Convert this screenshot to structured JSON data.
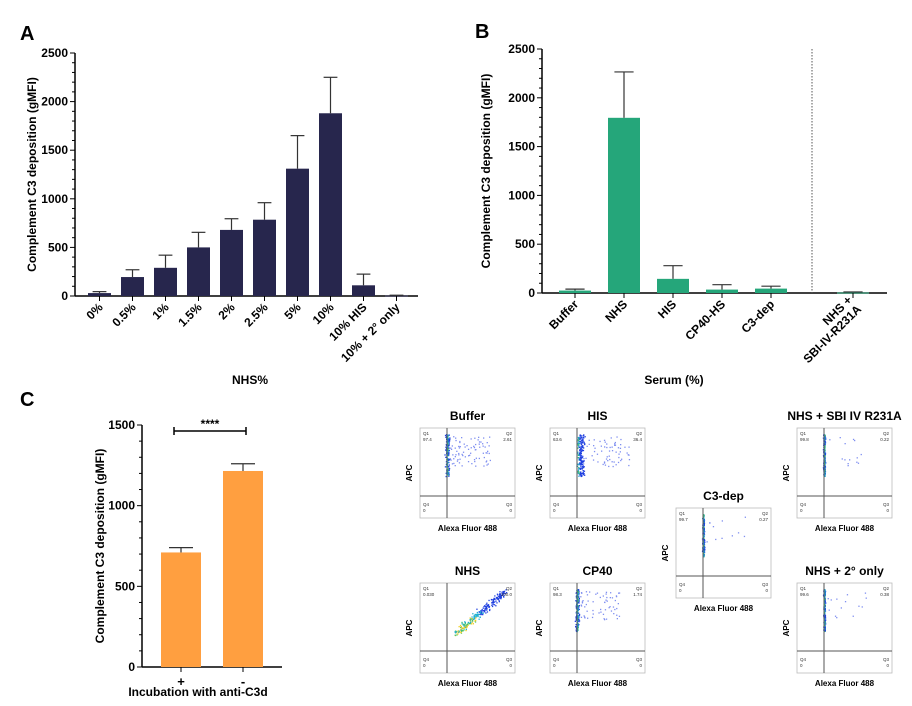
{
  "panels": {
    "A": "A",
    "B": "B",
    "C": "C"
  },
  "chart_data": [
    {
      "id": "A",
      "type": "bar",
      "title": "",
      "xlabel": "NHS%",
      "ylabel": "Complement C3 deposition (gMFI)",
      "ylim": [
        0,
        2500
      ],
      "yticks": [
        0,
        500,
        1000,
        1500,
        2000,
        2500
      ],
      "grid": false,
      "color": "#27264d",
      "categories": [
        "0%",
        "0.5%",
        "1%",
        "1.5%",
        "2%",
        "2.5%",
        "5%",
        "10%",
        "10% HIS",
        "10% + 2° only"
      ],
      "values": [
        30,
        195,
        290,
        500,
        680,
        785,
        1310,
        1880,
        110,
        5
      ],
      "errors": [
        15,
        75,
        130,
        155,
        115,
        175,
        340,
        370,
        115,
        3
      ]
    },
    {
      "id": "B",
      "type": "bar",
      "title": "",
      "xlabel": "Serum (%)",
      "ylabel": "Complement C3 deposition (gMFI)",
      "ylim": [
        0,
        2500
      ],
      "yticks": [
        0,
        500,
        1000,
        1500,
        2000,
        2500
      ],
      "grid": false,
      "color": "#25a67a",
      "categories": [
        "Buffer",
        "NHS",
        "HIS",
        "CP40-HS",
        "C3-dep",
        "NHS + SBI-IV-R231A"
      ],
      "category_lines": [
        [
          "Buffer"
        ],
        [
          "NHS"
        ],
        [
          "HIS"
        ],
        [
          "CP40-HS"
        ],
        [
          "C3-dep"
        ],
        [
          "NHS +",
          "SBI-IV-R231A"
        ]
      ],
      "values": [
        25,
        1795,
        145,
        35,
        45,
        5
      ],
      "errors": [
        15,
        470,
        135,
        50,
        25,
        5
      ],
      "separator_after_index": 4
    },
    {
      "id": "C",
      "type": "bar",
      "title": "",
      "xlabel": "Incubation with anti-C3d",
      "ylabel": "Complement C3 deposition (gMFI)",
      "ylim": [
        0,
        1500
      ],
      "yticks": [
        0,
        500,
        1000,
        1500
      ],
      "grid": false,
      "color": "#ff9f40",
      "categories": [
        "+",
        "-"
      ],
      "values": [
        710,
        1215
      ],
      "errors": [
        30,
        45
      ],
      "significance": {
        "between": [
          0,
          1
        ],
        "label": "****"
      }
    },
    {
      "id": "C-flow",
      "type": "scatter",
      "xlabel": "Alexa Fluor 488",
      "ylabel": "APC",
      "plots": [
        {
          "title": "Buffer",
          "q1_label": "Q1",
          "q1": "97.4",
          "q2_label": "Q2",
          "q2": "2.61",
          "q3_label": "Q3",
          "q3": "0",
          "q4_label": "Q4",
          "q4": "0",
          "cloud": "vertical-narrow-spread"
        },
        {
          "title": "HIS",
          "q1_label": "Q1",
          "q1": "63.6",
          "q2_label": "Q2",
          "q2": "36.4",
          "q3_label": "Q3",
          "q3": "0",
          "q4_label": "Q4",
          "q4": "0",
          "cloud": "vertical-wide"
        },
        {
          "title": "NHS",
          "q1_label": "Q1",
          "q1": "0.030",
          "q2_label": "Q2",
          "q2": "100.0",
          "q3_label": "Q3",
          "q3": "0",
          "q4_label": "Q4",
          "q4": "0",
          "cloud": "diagonal"
        },
        {
          "title": "CP40",
          "q1_label": "Q1",
          "q1": "98.3",
          "q2_label": "Q2",
          "q2": "1.74",
          "q3_label": "Q3",
          "q3": "0",
          "q4_label": "Q4",
          "q4": "0",
          "cloud": "vertical-narrow-spread"
        },
        {
          "title": "C3-dep",
          "q1_label": "Q1",
          "q1": "99.7",
          "q2_label": "Q2",
          "q2": "0.27",
          "q3_label": "Q3",
          "q3": "0",
          "q4_label": "Q4",
          "q4": "0",
          "cloud": "vertical-thin"
        },
        {
          "title": "NHS + SBI IV R231A",
          "q1_label": "Q1",
          "q1": "99.8",
          "q2_label": "Q2",
          "q2": "0.22",
          "q3_label": "Q3",
          "q3": "0",
          "q4_label": "Q4",
          "q4": "0",
          "cloud": "vertical-thin"
        },
        {
          "title": "NHS + 2° only",
          "q1_label": "Q1",
          "q1": "99.6",
          "q2_label": "Q2",
          "q2": "0.38",
          "q3_label": "Q3",
          "q3": "0",
          "q4_label": "Q4",
          "q4": "0",
          "cloud": "vertical-thin"
        }
      ]
    }
  ]
}
